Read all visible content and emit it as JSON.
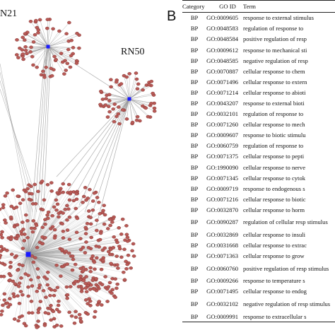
{
  "panel": {
    "letter": "B"
  },
  "network": {
    "hubs": [
      {
        "id": "rn21",
        "label": "N21"
      },
      {
        "id": "rn50",
        "label": "RN50"
      },
      {
        "id": "center",
        "label": ""
      }
    ],
    "colors": {
      "node": "#b85a56",
      "node_edge": "#7a2f2c",
      "hub": "#1a1aff",
      "edge": "#9a9a9a"
    }
  },
  "table": {
    "headers": {
      "category": "Category",
      "go_id": "GO ID",
      "term": "Term"
    },
    "rows": [
      {
        "category": "BP",
        "go_id": "GO:0009605",
        "term": "response to external stimulus"
      },
      {
        "category": "BP",
        "go_id": "GO:0048583",
        "term": "regulation of response to"
      },
      {
        "category": "BP",
        "go_id": "GO:0048584",
        "term": "positive regulation of resp"
      },
      {
        "category": "BP",
        "go_id": "GO:0009612",
        "term": "response to mechanical sti"
      },
      {
        "category": "BP",
        "go_id": "GO:0048585",
        "term": "negative regulation of resp"
      },
      {
        "category": "BP",
        "go_id": "GO:0070887",
        "term": "cellular response to chem"
      },
      {
        "category": "BP",
        "go_id": "GO:0071496",
        "term": "cellular response to extern"
      },
      {
        "category": "BP",
        "go_id": "GO:0071214",
        "term": "cellular response to abioti"
      },
      {
        "category": "BP",
        "go_id": "GO:0043207",
        "term": "response to external bioti"
      },
      {
        "category": "BP",
        "go_id": "GO:0032101",
        "term": "regulation of response to"
      },
      {
        "category": "BP",
        "go_id": "GO:0071260",
        "term": "cellular response to mech"
      },
      {
        "category": "BP",
        "go_id": "GO:0009607",
        "term": "response to biotic stimulu"
      },
      {
        "category": "BP",
        "go_id": "GO:0060759",
        "term": "regulation of response to"
      },
      {
        "category": "BP",
        "go_id": "GO:0071375",
        "term": "cellular response to pepti"
      },
      {
        "category": "BP",
        "go_id": "GO:1990090",
        "term": "cellular response to nerve"
      },
      {
        "category": "BP",
        "go_id": "GO:0071345",
        "term": "cellular response to cytok"
      },
      {
        "category": "BP",
        "go_id": "GO:0009719",
        "term": "response to endogenous s"
      },
      {
        "category": "BP",
        "go_id": "GO:0071216",
        "term": "cellular response to biotic"
      },
      {
        "category": "BP",
        "go_id": "GO:0032870",
        "term": "cellular response to horm"
      },
      {
        "category": "BP",
        "go_id": "GO:0090287",
        "term": "regulation of cellular resp stimulus",
        "two_line": true
      },
      {
        "category": "BP",
        "go_id": "GO:0032869",
        "term": "cellular response to insuli"
      },
      {
        "category": "BP",
        "go_id": "GO:0031668",
        "term": "cellular response to extrac"
      },
      {
        "category": "BP",
        "go_id": "GO:0071363",
        "term": "cellular response to grow"
      },
      {
        "category": "BP",
        "go_id": "GO:0060760",
        "term": "positive regulation of resp stimulus",
        "two_line": true
      },
      {
        "category": "BP",
        "go_id": "GO:0009266",
        "term": "response to temperature s"
      },
      {
        "category": "BP",
        "go_id": "GO:0071495",
        "term": "cellular response to endog"
      },
      {
        "category": "BP",
        "go_id": "GO:0032102",
        "term": "negative regulation of resp stimulus",
        "two_line": true
      },
      {
        "category": "BP",
        "go_id": "GO:0009991",
        "term": "response to extracellular s"
      }
    ]
  }
}
